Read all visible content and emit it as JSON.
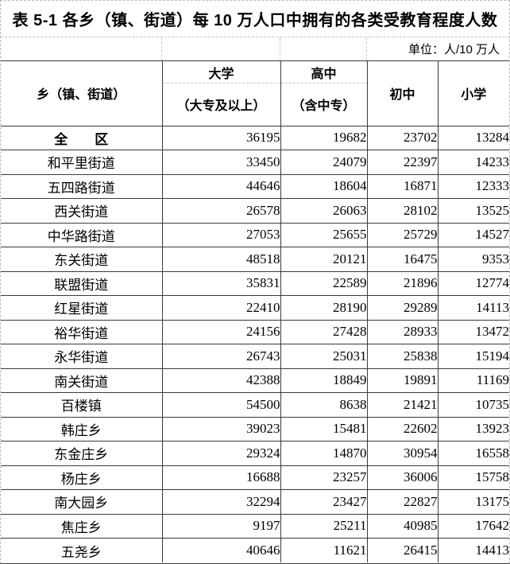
{
  "title": "表 5-1 各乡（镇、街道）每 10 万人口中拥有的各类受教育程度人数",
  "unit_label": "单位：人/10 万人",
  "table": {
    "row_header": "乡（镇、街道）",
    "columns": [
      {
        "line1": "大学",
        "line2": "（大专及以上）"
      },
      {
        "line1": "高中",
        "line2": "（含中专）"
      },
      {
        "label": "初中"
      },
      {
        "label": "小学"
      }
    ],
    "rows": [
      {
        "name": "全　　区",
        "bold": true,
        "values": [
          36195,
          19682,
          23702,
          13284
        ]
      },
      {
        "name": "和平里街道",
        "bold": false,
        "values": [
          33450,
          24079,
          22397,
          14233
        ]
      },
      {
        "name": "五四路街道",
        "bold": false,
        "values": [
          44646,
          18604,
          16871,
          12333
        ]
      },
      {
        "name": "西关街道",
        "bold": false,
        "values": [
          26578,
          26063,
          28102,
          13525
        ]
      },
      {
        "name": "中华路街道",
        "bold": false,
        "values": [
          27053,
          25655,
          25729,
          14527
        ]
      },
      {
        "name": "东关街道",
        "bold": false,
        "values": [
          48518,
          20121,
          16475,
          9353
        ]
      },
      {
        "name": "联盟街道",
        "bold": false,
        "values": [
          35831,
          22589,
          21896,
          12774
        ]
      },
      {
        "name": "红星街道",
        "bold": false,
        "values": [
          22410,
          28190,
          29289,
          14113
        ]
      },
      {
        "name": "裕华街道",
        "bold": false,
        "values": [
          24156,
          27428,
          28933,
          13472
        ]
      },
      {
        "name": "永华街道",
        "bold": false,
        "values": [
          26743,
          25031,
          25838,
          15194
        ]
      },
      {
        "name": "南关街道",
        "bold": false,
        "values": [
          42388,
          18849,
          19891,
          11169
        ]
      },
      {
        "name": "百楼镇",
        "bold": false,
        "values": [
          54500,
          8638,
          21421,
          10735
        ]
      },
      {
        "name": "韩庄乡",
        "bold": false,
        "values": [
          39023,
          15481,
          22602,
          13923
        ]
      },
      {
        "name": "东金庄乡",
        "bold": false,
        "values": [
          29324,
          14870,
          30954,
          16558
        ]
      },
      {
        "name": "杨庄乡",
        "bold": false,
        "values": [
          16688,
          23257,
          36006,
          15758
        ]
      },
      {
        "name": "南大园乡",
        "bold": false,
        "values": [
          32294,
          23427,
          22827,
          13175
        ]
      },
      {
        "name": "焦庄乡",
        "bold": false,
        "values": [
          9197,
          25211,
          40985,
          17642
        ]
      },
      {
        "name": "五尧乡",
        "bold": false,
        "values": [
          40646,
          11621,
          26415,
          14413
        ]
      }
    ]
  }
}
